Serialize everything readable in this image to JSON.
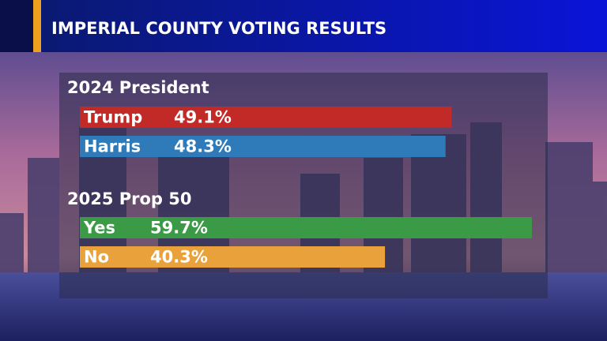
{
  "title": "IMPERIAL COUNTY VOTING RESULTS",
  "chart_data": [
    {
      "type": "bar",
      "orientation": "horizontal",
      "title": "2024 President",
      "categories": [
        "Trump",
        "Harris"
      ],
      "values": [
        49.1,
        48.3
      ],
      "value_labels": [
        "49.1%",
        "48.3%"
      ],
      "colors": [
        "#c12a26",
        "#2f7bb9"
      ],
      "xlim": [
        0,
        100
      ]
    },
    {
      "type": "bar",
      "orientation": "horizontal",
      "title": "2025 Prop 50",
      "categories": [
        "Yes",
        "No"
      ],
      "values": [
        59.7,
        40.3
      ],
      "value_labels": [
        "59.7%",
        "40.3%"
      ],
      "colors": [
        "#3b9a45",
        "#e9a23b"
      ],
      "xlim": [
        0,
        100
      ]
    }
  ]
}
